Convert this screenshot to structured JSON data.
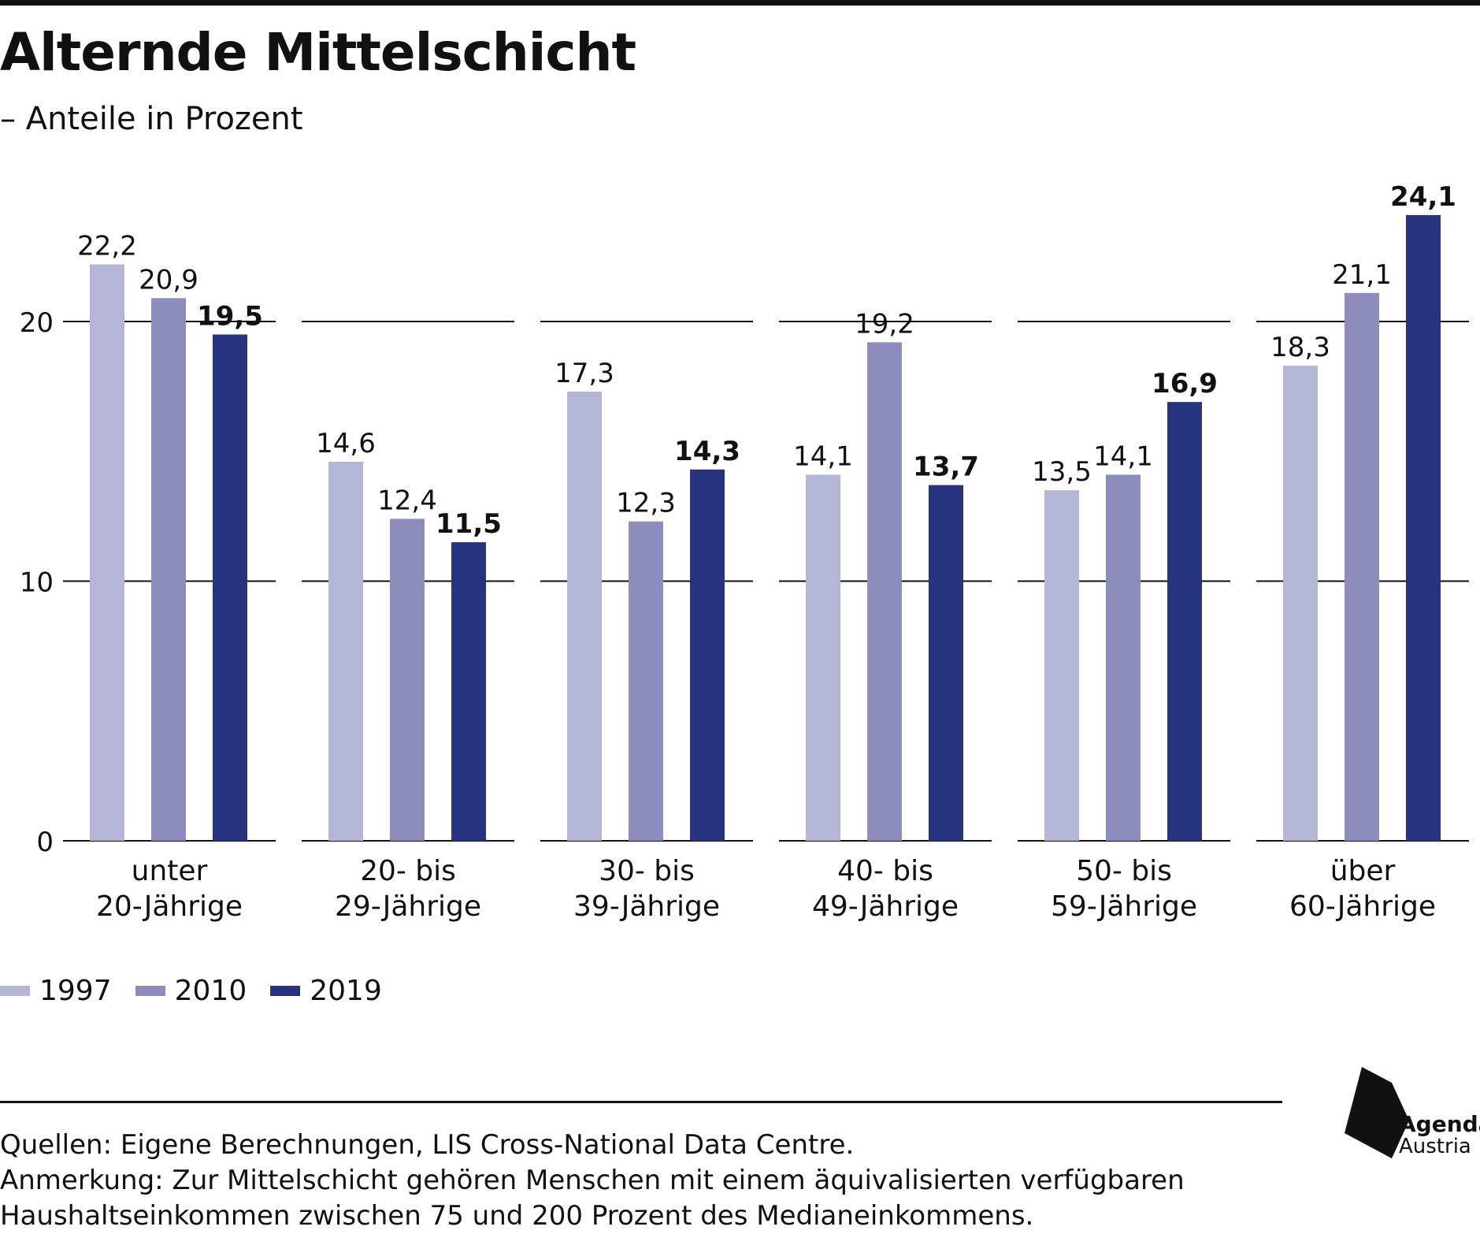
{
  "title": "Alternde Mittelschicht",
  "subtitle": "– Anteile in Prozent",
  "colors": {
    "s1997": "#b3b6d6",
    "s2010": "#8d8dbd",
    "s2019": "#283480"
  },
  "chart_data": {
    "type": "bar",
    "categories": [
      [
        "unter",
        "20-Jährige"
      ],
      [
        "20- bis",
        "29-Jährige"
      ],
      [
        "30- bis",
        "39-Jährige"
      ],
      [
        "40- bis",
        "49-Jährige"
      ],
      [
        "50- bis",
        "59-Jährige"
      ],
      [
        "über",
        "60-Jährige"
      ]
    ],
    "series": [
      {
        "name": "1997",
        "values": [
          22.2,
          14.6,
          17.3,
          14.1,
          13.5,
          18.3
        ],
        "labels": [
          "22,2",
          "14,6",
          "17,3",
          "14,1",
          "13,5",
          "18,3"
        ]
      },
      {
        "name": "2010",
        "values": [
          20.9,
          12.4,
          12.3,
          19.2,
          14.1,
          21.1
        ],
        "labels": [
          "20,9",
          "12,4",
          "12,3",
          "19,2",
          "14,1",
          "21,1"
        ]
      },
      {
        "name": "2019",
        "values": [
          19.5,
          11.5,
          14.3,
          13.7,
          16.9,
          24.1
        ],
        "labels": [
          "19,5",
          "11,5",
          "14,3",
          "13,7",
          "16,9",
          "24,1"
        ]
      }
    ],
    "yticks": [
      0,
      10,
      20
    ],
    "ylim": [
      0,
      24.1
    ],
    "grid": true,
    "legend_position": "bottom-left"
  },
  "notes": {
    "sources": "Quellen: Eigene Berechnungen, LIS Cross-National Data Centre.",
    "remark_line1": "Anmerkung: Zur Mittelschicht gehören Menschen mit einem äquivalisierten verfügbaren",
    "remark_line2": "Haushaltseinkommen zwischen 75 und 200 Prozent des Medianeinkommens."
  },
  "logo": {
    "line1": "Agenda",
    "line2": "Austria"
  }
}
